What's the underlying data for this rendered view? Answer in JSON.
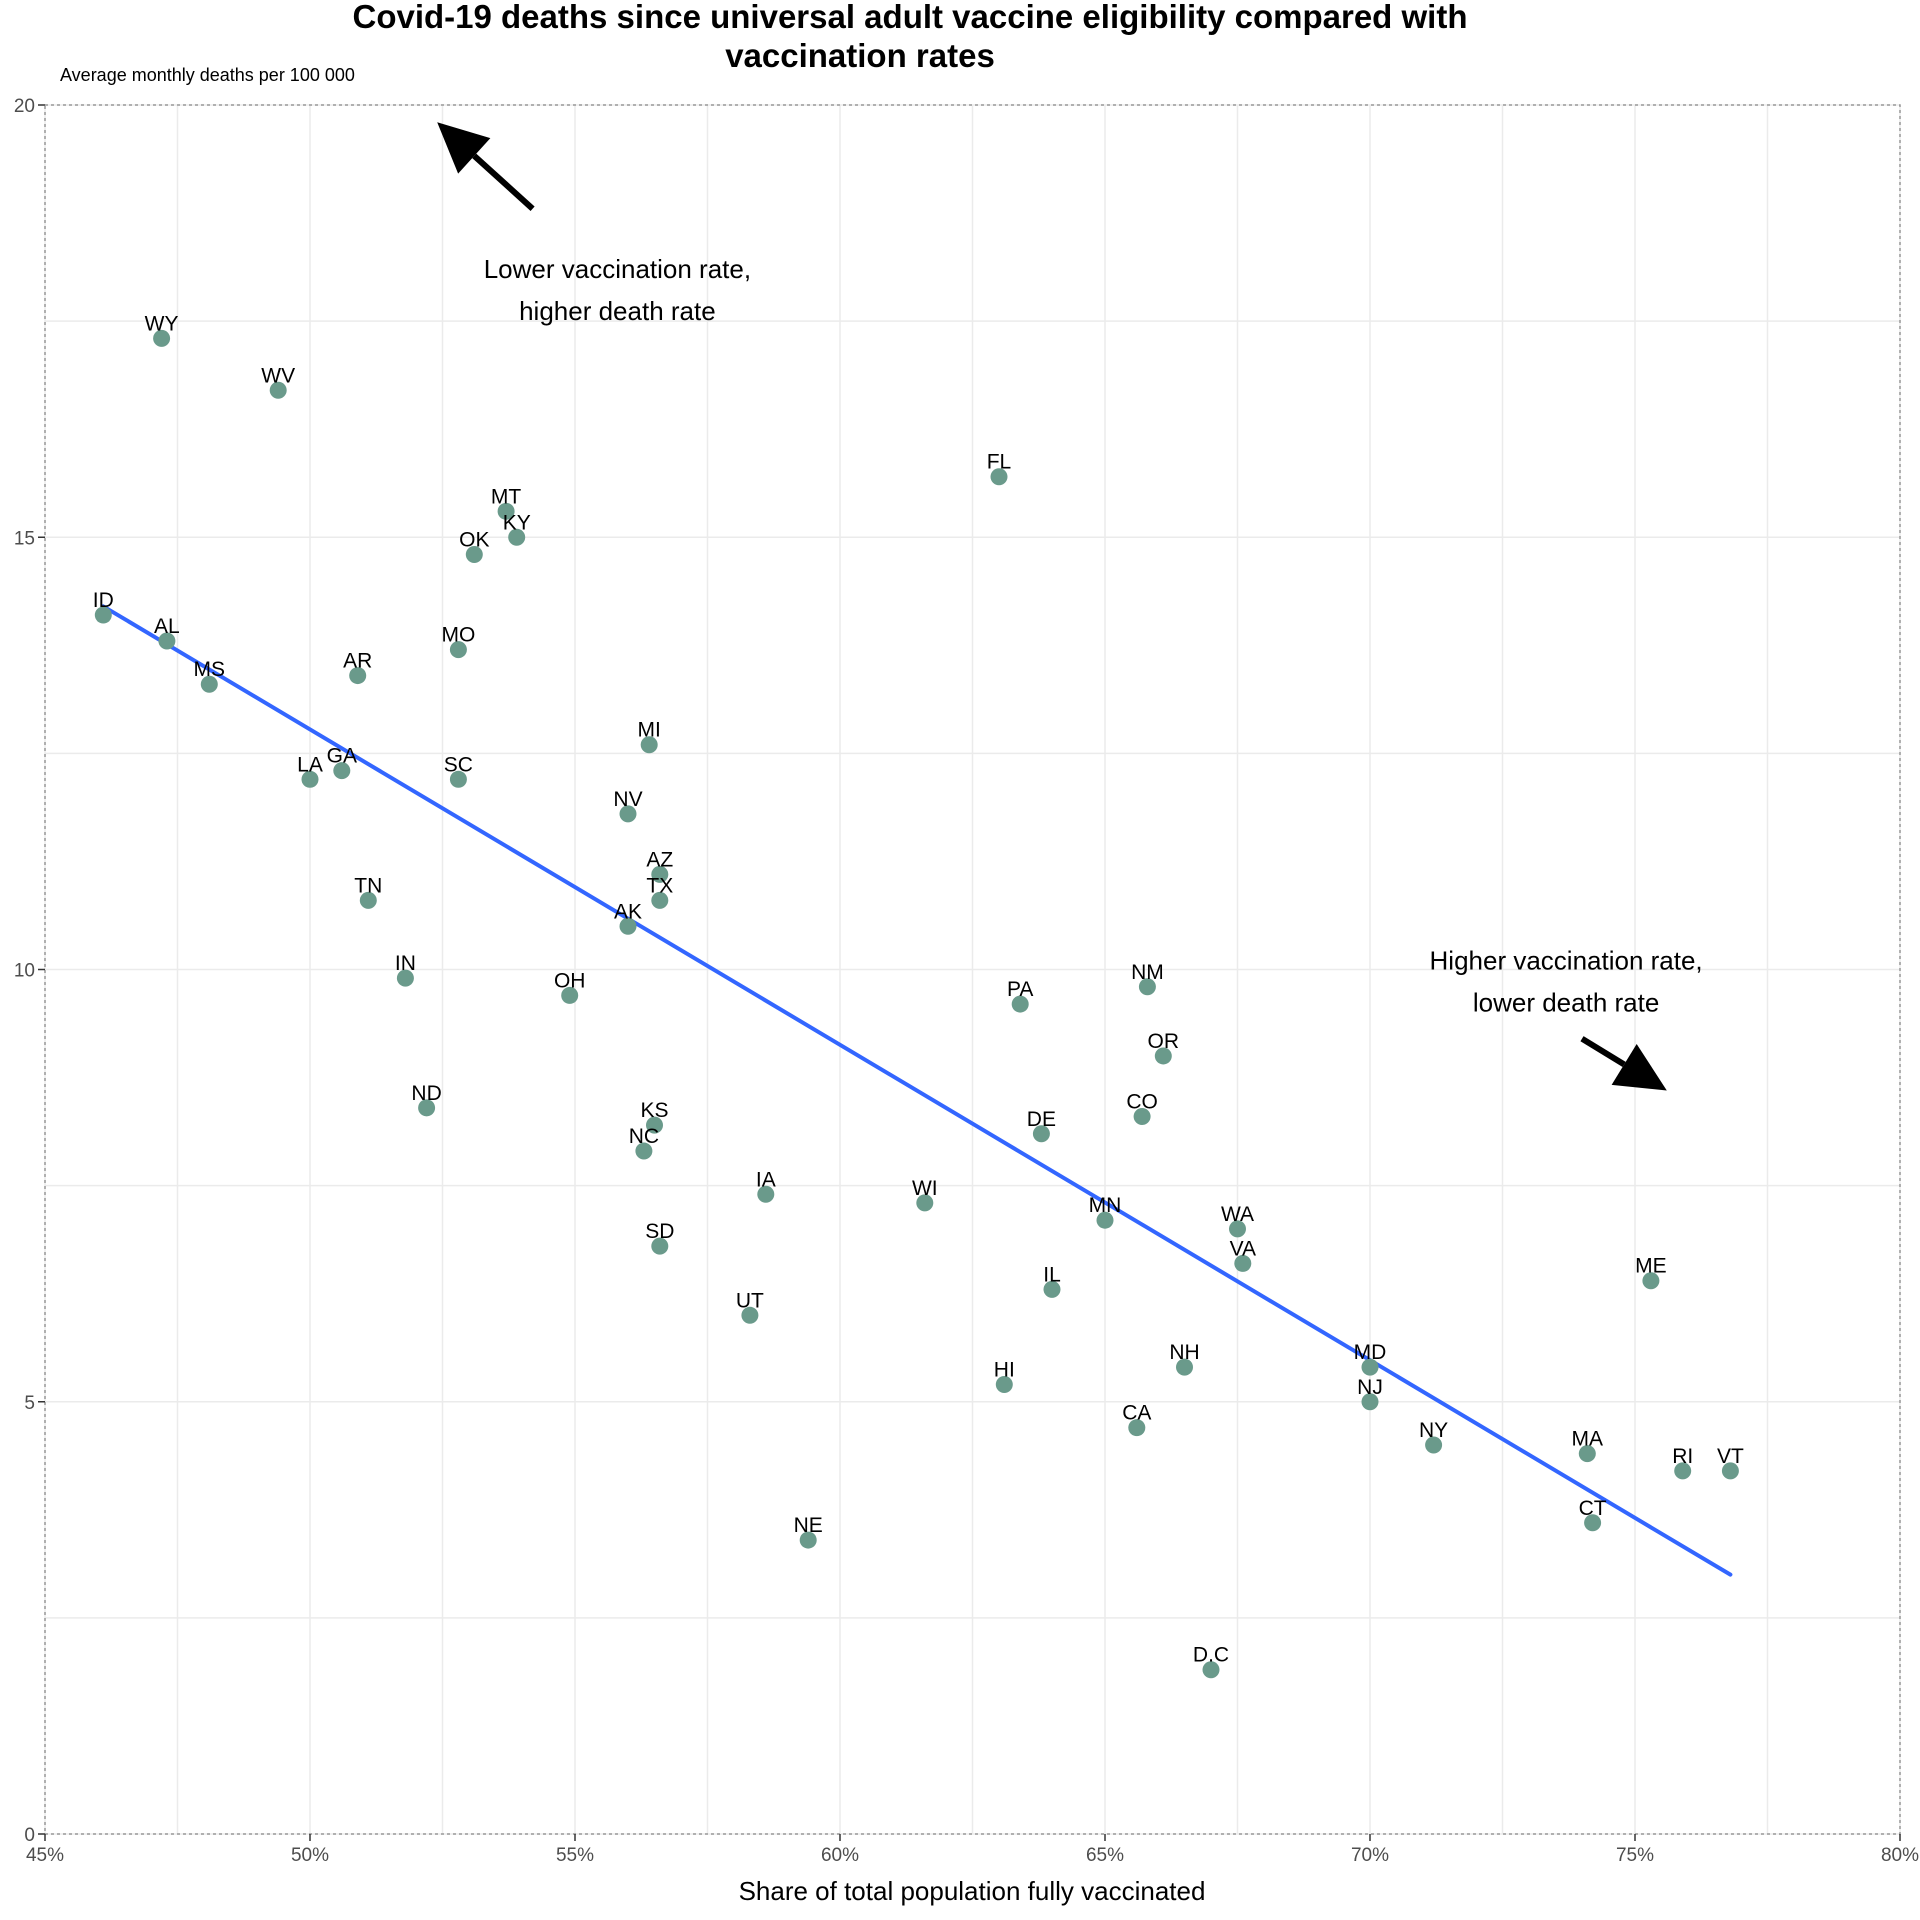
{
  "chart_data": {
    "type": "scatter",
    "title": "Covid-19 deaths since universal adult vaccine eligibility compared with vaccination rates",
    "title_lines": [
      "Covid-19 deaths since universal adult vaccine eligibility compared with",
      "vaccination rates"
    ],
    "subtitle": "Average monthly deaths per 100 000",
    "xlabel": "Share of total population fully vaccinated",
    "ylabel": "",
    "xlim": [
      45,
      80
    ],
    "ylim": [
      0,
      20
    ],
    "x_ticks": [
      45,
      50,
      55,
      60,
      65,
      70,
      75,
      80
    ],
    "x_tick_labels": [
      "45%",
      "50%",
      "55%",
      "60%",
      "65%",
      "70%",
      "75%",
      "80%"
    ],
    "y_ticks": [
      0,
      5,
      10,
      15,
      20
    ],
    "y_tick_labels": [
      "0",
      "5",
      "10",
      "15",
      "20"
    ],
    "point_color": "#6a9a8b",
    "trend_color": "#3366ff",
    "trendline": {
      "x": [
        46.1,
        76.8
      ],
      "y": [
        14.2,
        3.0
      ]
    },
    "points": [
      {
        "label": "WY",
        "x": 47.2,
        "y": 17.3
      },
      {
        "label": "WV",
        "x": 49.4,
        "y": 16.7
      },
      {
        "label": "FL",
        "x": 63.0,
        "y": 15.7
      },
      {
        "label": "MT",
        "x": 53.7,
        "y": 15.3
      },
      {
        "label": "KY",
        "x": 53.9,
        "y": 15.0
      },
      {
        "label": "OK",
        "x": 53.1,
        "y": 14.8
      },
      {
        "label": "ID",
        "x": 46.1,
        "y": 14.1
      },
      {
        "label": "AL",
        "x": 47.3,
        "y": 13.8
      },
      {
        "label": "MO",
        "x": 52.8,
        "y": 13.7
      },
      {
        "label": "AR",
        "x": 50.9,
        "y": 13.4
      },
      {
        "label": "MS",
        "x": 48.1,
        "y": 13.3
      },
      {
        "label": "MI",
        "x": 56.4,
        "y": 12.6
      },
      {
        "label": "GA",
        "x": 50.6,
        "y": 12.3
      },
      {
        "label": "SC",
        "x": 52.8,
        "y": 12.2
      },
      {
        "label": "LA",
        "x": 50.0,
        "y": 12.2
      },
      {
        "label": "NV",
        "x": 56.0,
        "y": 11.8
      },
      {
        "label": "AZ",
        "x": 56.6,
        "y": 11.1
      },
      {
        "label": "TX",
        "x": 56.6,
        "y": 10.8
      },
      {
        "label": "TN",
        "x": 51.1,
        "y": 10.8
      },
      {
        "label": "AK",
        "x": 56.0,
        "y": 10.5
      },
      {
        "label": "IN",
        "x": 51.8,
        "y": 9.9
      },
      {
        "label": "NM",
        "x": 65.8,
        "y": 9.8
      },
      {
        "label": "OH",
        "x": 54.9,
        "y": 9.7
      },
      {
        "label": "PA",
        "x": 63.4,
        "y": 9.6
      },
      {
        "label": "OR",
        "x": 66.1,
        "y": 9.0
      },
      {
        "label": "ND",
        "x": 52.2,
        "y": 8.4
      },
      {
        "label": "KS",
        "x": 56.5,
        "y": 8.2
      },
      {
        "label": "CO",
        "x": 65.7,
        "y": 8.3
      },
      {
        "label": "DE",
        "x": 63.8,
        "y": 8.1
      },
      {
        "label": "NC",
        "x": 56.3,
        "y": 7.9
      },
      {
        "label": "IA",
        "x": 58.6,
        "y": 7.4
      },
      {
        "label": "WI",
        "x": 61.6,
        "y": 7.3
      },
      {
        "label": "MN",
        "x": 65.0,
        "y": 7.1
      },
      {
        "label": "WA",
        "x": 67.5,
        "y": 7.0
      },
      {
        "label": "SD",
        "x": 56.6,
        "y": 6.8
      },
      {
        "label": "VA",
        "x": 67.6,
        "y": 6.6
      },
      {
        "label": "ME",
        "x": 75.3,
        "y": 6.4
      },
      {
        "label": "IL",
        "x": 64.0,
        "y": 6.3
      },
      {
        "label": "UT",
        "x": 58.3,
        "y": 6.0
      },
      {
        "label": "MD",
        "x": 70.0,
        "y": 5.4
      },
      {
        "label": "NH",
        "x": 66.5,
        "y": 5.4
      },
      {
        "label": "HI",
        "x": 63.1,
        "y": 5.2
      },
      {
        "label": "NJ",
        "x": 70.0,
        "y": 5.0
      },
      {
        "label": "CA",
        "x": 65.6,
        "y": 4.7
      },
      {
        "label": "NY",
        "x": 71.2,
        "y": 4.5
      },
      {
        "label": "MA",
        "x": 74.1,
        "y": 4.4
      },
      {
        "label": "VT",
        "x": 76.8,
        "y": 4.2
      },
      {
        "label": "RI",
        "x": 75.9,
        "y": 4.2
      },
      {
        "label": "CT",
        "x": 74.2,
        "y": 3.6
      },
      {
        "label": "NE",
        "x": 59.4,
        "y": 3.4
      },
      {
        "label": "D.C",
        "x": 67.0,
        "y": 1.9
      }
    ],
    "annotations": [
      {
        "lines": [
          "Lower vaccination rate,",
          "higher death rate"
        ],
        "text_x": 55.8,
        "text_y": 18.0,
        "arrow_from": [
          54.2,
          18.8
        ],
        "arrow_to": [
          52.4,
          19.8
        ]
      },
      {
        "lines": [
          "Higher vaccination rate,",
          "lower death rate"
        ],
        "text_x": 73.7,
        "text_y": 10.0,
        "arrow_from": [
          74.0,
          9.2
        ],
        "arrow_to": [
          75.6,
          8.6
        ]
      }
    ]
  }
}
